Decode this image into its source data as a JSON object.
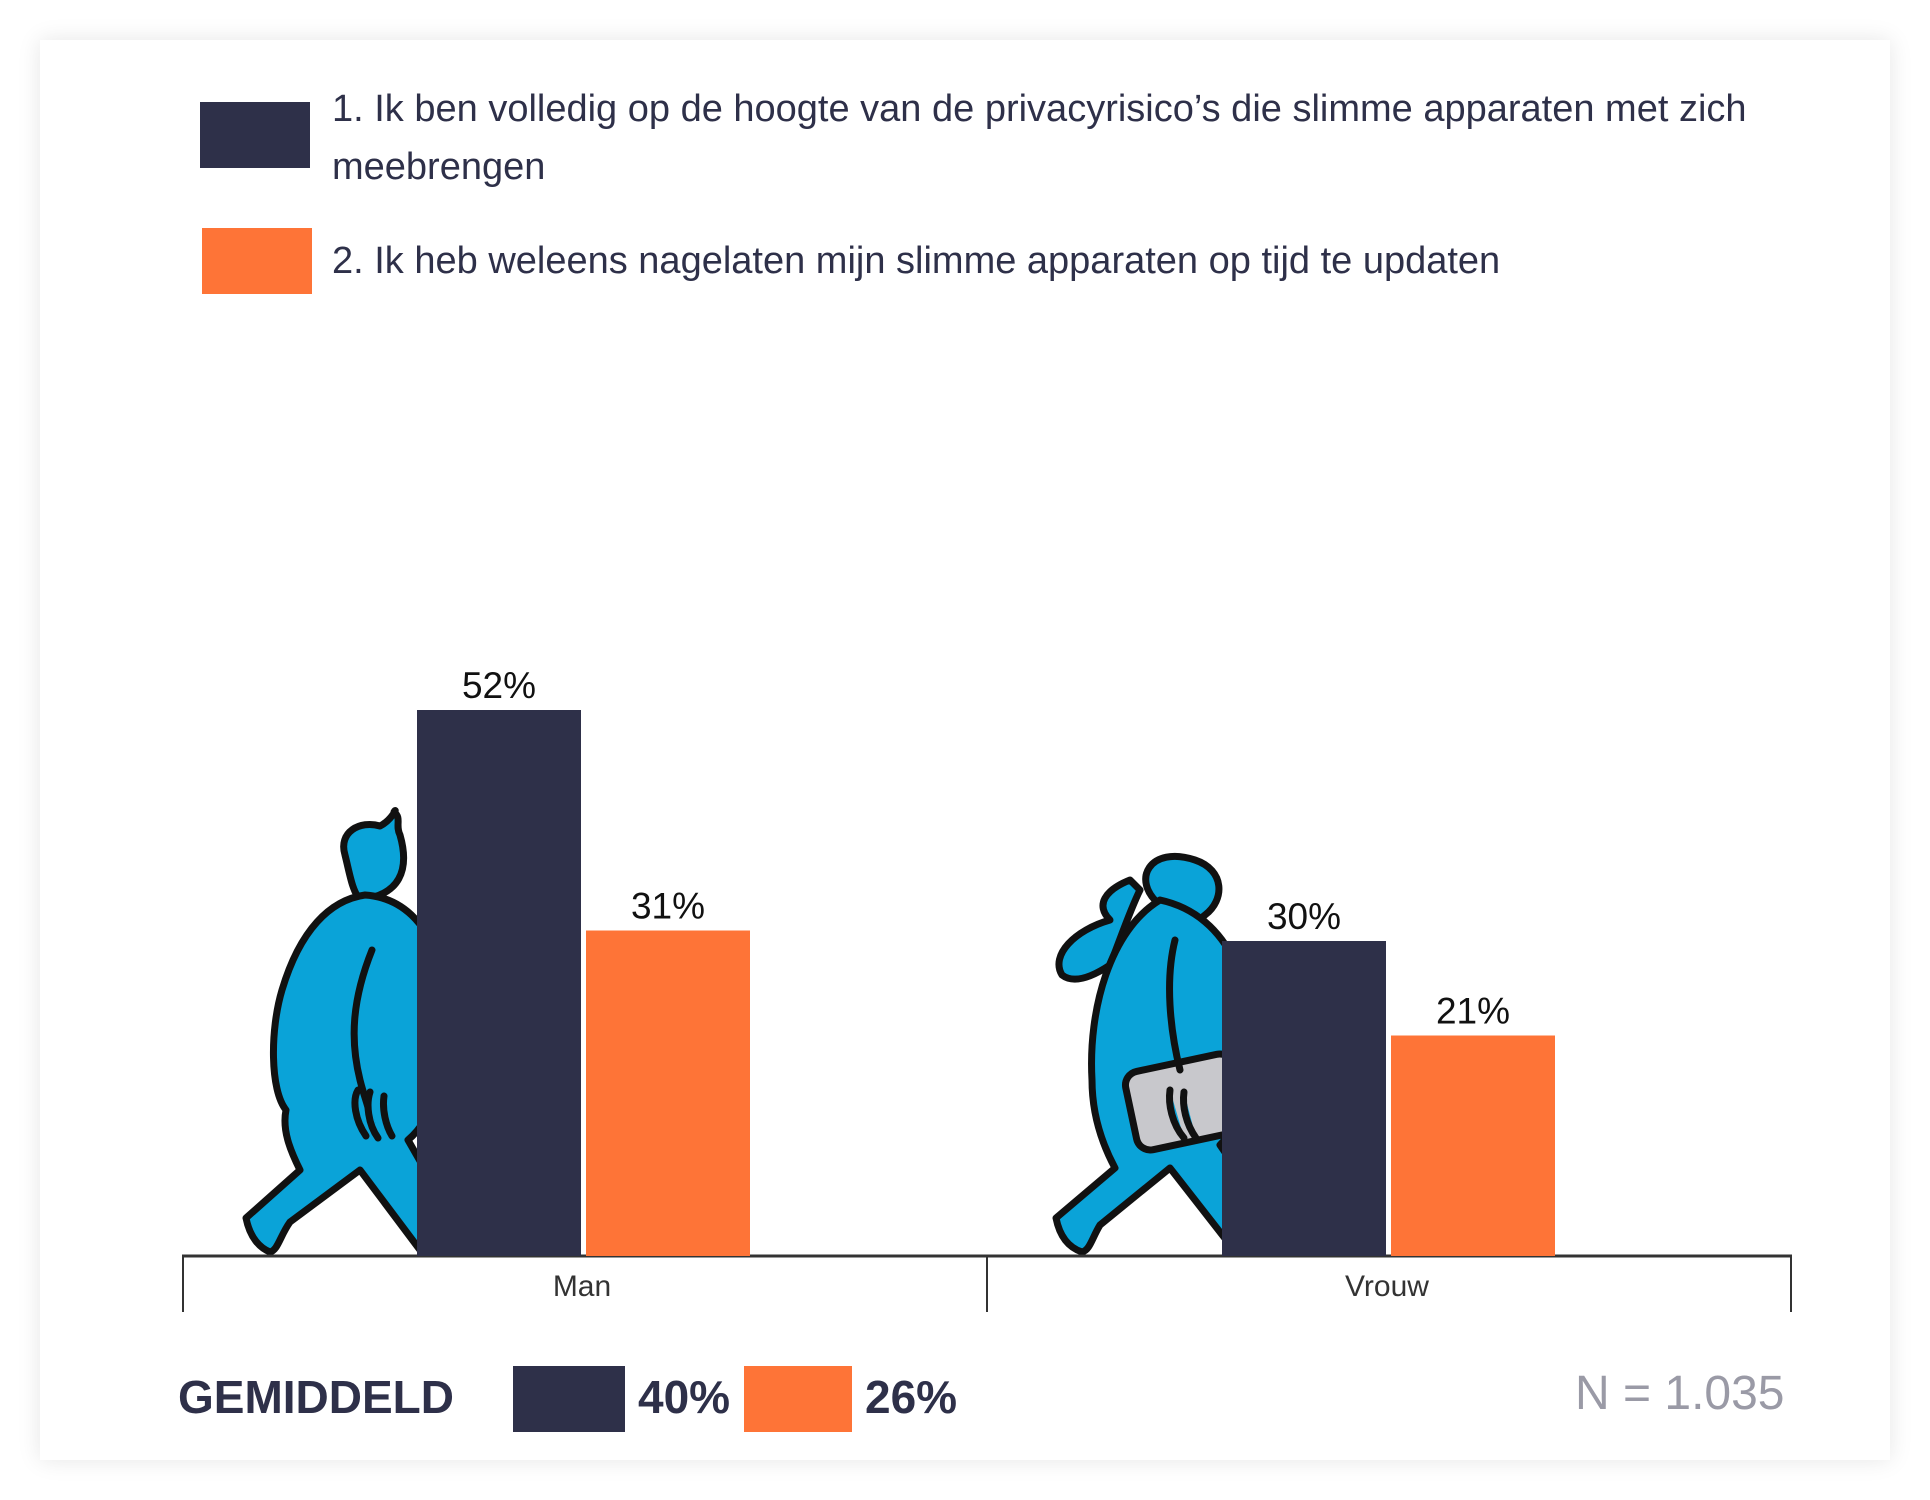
{
  "legend": [
    {
      "label": "1. Ik ben volledig op de hoogte van de privacyrisico’s die slimme apparaten met zich meebrengen",
      "color": "#2e3049"
    },
    {
      "label": "2. Ik heb weleens nagelaten mijn slimme apparaten op tijd te updaten",
      "color": "#fe7437"
    }
  ],
  "chart_data": {
    "type": "bar",
    "categories": [
      "Man",
      "Vrouw"
    ],
    "series": [
      {
        "name": "1. Ik ben volledig op de hoogte van de privacyrisico’s die slimme apparaten met zich meebrengen",
        "values": [
          52,
          30
        ],
        "color": "#2e3049"
      },
      {
        "name": "2. Ik heb weleens nagelaten mijn slimme apparaten op tijd te updaten",
        "values": [
          31,
          21
        ],
        "color": "#fe7437"
      }
    ],
    "data_labels": [
      [
        "52%",
        "30%"
      ],
      [
        "31%",
        "21%"
      ]
    ],
    "ylim": [
      0,
      60
    ],
    "grid": false,
    "legend_position": "top"
  },
  "summary": {
    "label": "GEMIDDELD",
    "values": [
      "40%",
      "26%"
    ]
  },
  "sample": "N = 1.035"
}
